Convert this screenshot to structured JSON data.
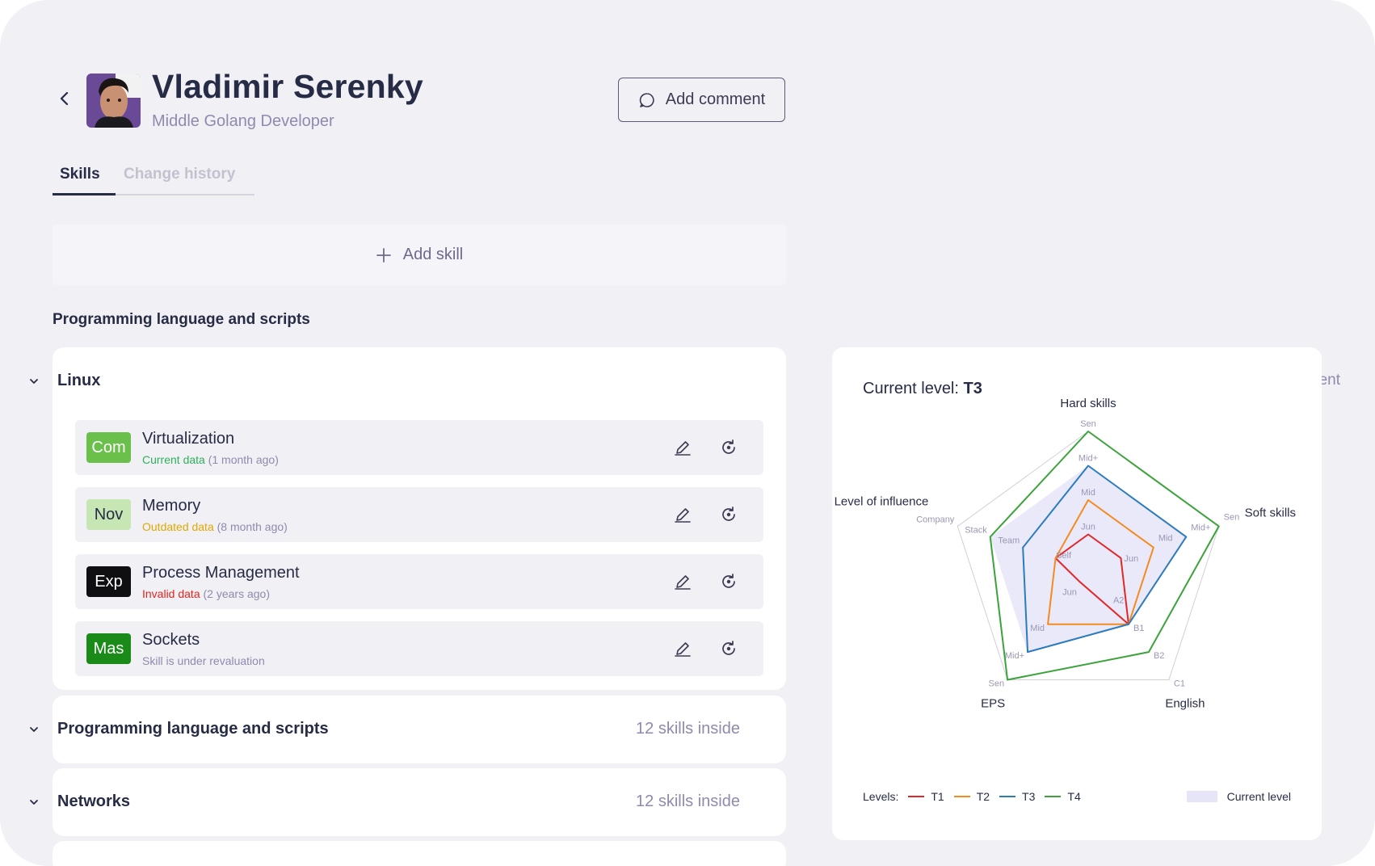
{
  "header": {
    "name": "Vladimir Serenky",
    "role": "Middle Golang Developer",
    "add_comment": "Add comment"
  },
  "tabs": [
    {
      "label": "Skills",
      "active": true
    },
    {
      "label": "Change history",
      "active": false
    }
  ],
  "add_skill": "Add skill",
  "section_title": "Programming language and scripts",
  "linux": {
    "title": "Linux",
    "add_comment": "Add comment",
    "skills": [
      {
        "badge": "Com",
        "badge_bg": "#6bc04b",
        "badge_fg": "#ffffff",
        "name": "Virtualization",
        "status": "Current data",
        "status_color": "#2fb05a",
        "age": "(1 month ago)"
      },
      {
        "badge": "Nov",
        "badge_bg": "#c6e6b4",
        "badge_fg": "#262c46",
        "name": "Memory",
        "status": "Outdated data",
        "status_color": "#e0a800",
        "age": "(8 month ago)"
      },
      {
        "badge": "Exp",
        "badge_bg": "#0f0f12",
        "badge_fg": "#ffffff",
        "name": "Process Management",
        "status": "Invalid data",
        "status_color": "#e3251e",
        "age": "(2 years ago)"
      },
      {
        "badge": "Mas",
        "badge_bg": "#1a8a19",
        "badge_fg": "#ffffff",
        "name": "Sockets",
        "status": "",
        "status_color": "#8f8aae",
        "age": "Skill is under revaluation"
      }
    ]
  },
  "groups": [
    {
      "title": "Programming language and scripts",
      "count": "12 skills inside"
    },
    {
      "title": "Networks",
      "count": "12 skills inside"
    }
  ],
  "chart": {
    "current_level_label": "Current level:",
    "current_level_value": "T3",
    "legend_label": "Levels:",
    "current_legend": "Current level",
    "axis_titles": [
      "Hard skills",
      "Soft skills",
      "English",
      "EPS",
      "Level of influence"
    ]
  },
  "chart_data": {
    "type": "radar",
    "axes": [
      {
        "name": "Hard skills",
        "levels": [
          "Jun",
          "Mid",
          "Mid+",
          "Sen"
        ]
      },
      {
        "name": "Soft skills",
        "levels": [
          "Jun",
          "Mid",
          "Mid+",
          "Sen"
        ]
      },
      {
        "name": "English",
        "levels": [
          "A2",
          "B1",
          "B2",
          "C1"
        ]
      },
      {
        "name": "EPS",
        "levels": [
          "Jun",
          "Mid",
          "Mid+",
          "Sen"
        ]
      },
      {
        "name": "Level of influence",
        "levels": [
          "Self",
          "Team",
          "Stack",
          "Company"
        ]
      }
    ],
    "series": [
      {
        "name": "T1",
        "color": "#e32626",
        "values": [
          1,
          1,
          2,
          0.45,
          1
        ]
      },
      {
        "name": "T2",
        "color": "#f58a1f",
        "values": [
          2,
          2,
          2,
          2,
          1
        ]
      },
      {
        "name": "T3",
        "color": "#2b7bbd",
        "values": [
          3,
          3,
          2,
          3,
          2
        ]
      },
      {
        "name": "T4",
        "color": "#3aa33a",
        "values": [
          4,
          4,
          3,
          4,
          3
        ]
      }
    ],
    "current_level": {
      "name": "Current level",
      "color": "#e6e5f8",
      "values": [
        3,
        3,
        2,
        3,
        3
      ]
    },
    "max": 4
  }
}
